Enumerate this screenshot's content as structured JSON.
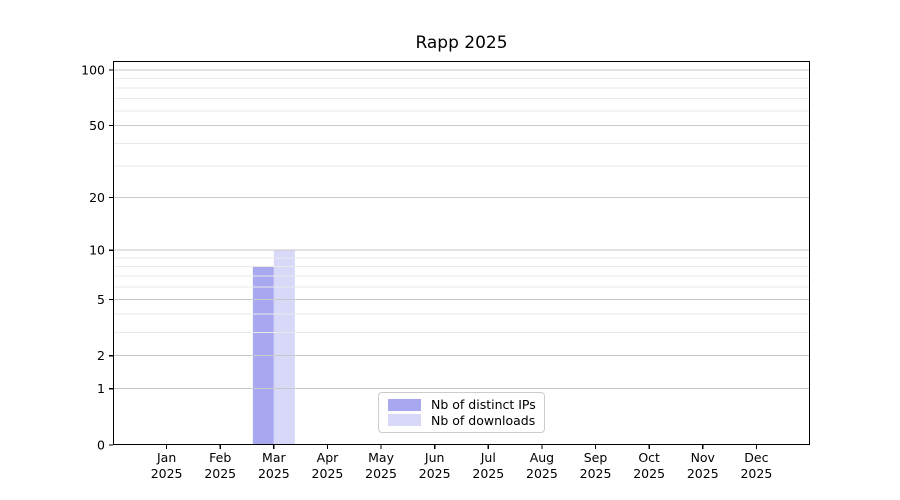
{
  "chart_data": {
    "type": "bar",
    "title": "Rapp 2025",
    "categories": [
      "Jan",
      "Feb",
      "Mar",
      "Apr",
      "May",
      "Jun",
      "Jul",
      "Aug",
      "Sep",
      "Oct",
      "Nov",
      "Dec"
    ],
    "category_year": "2025",
    "series": [
      {
        "name": "Nb of distinct IPs",
        "color": "#a8a8f0",
        "values": [
          0,
          0,
          8,
          0,
          0,
          0,
          0,
          0,
          0,
          0,
          0,
          0
        ]
      },
      {
        "name": "Nb of downloads",
        "color": "#d8d8f8",
        "values": [
          0,
          0,
          10,
          0,
          0,
          0,
          0,
          0,
          0,
          0,
          0,
          0
        ]
      }
    ],
    "yscale": "log1p",
    "ylim": [
      0,
      100
    ],
    "yticks": [
      0,
      1,
      2,
      5,
      10,
      20,
      50,
      100
    ],
    "yticks_minor": [
      3,
      4,
      6,
      7,
      8,
      9,
      30,
      40,
      60,
      70,
      80,
      90
    ],
    "grid": "horizontal",
    "legend_position": "lower center",
    "colors": {
      "axis": "#000000",
      "tick_label": "#000000",
      "grid_major": "#c9c9c9",
      "grid_minor": "#eaeaea",
      "legend_border": "#cccccc"
    }
  }
}
